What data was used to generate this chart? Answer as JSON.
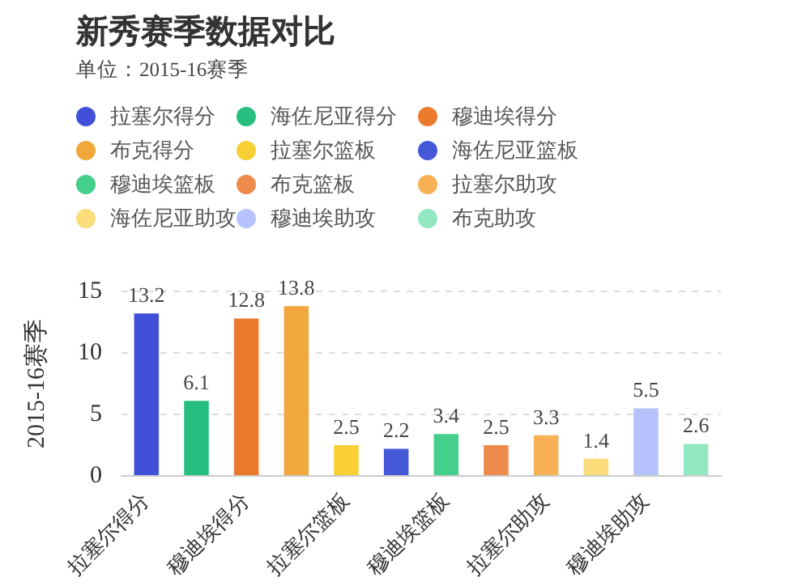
{
  "chart_data": {
    "type": "bar",
    "title": "新秀赛季数据对比",
    "subtitle": "单位：2015-16赛季",
    "ylabel": "2015-16赛季",
    "categories": [
      "拉塞尔得分",
      null,
      "穆迪埃得分",
      null,
      "拉塞尔篮板",
      null,
      "穆迪埃篮板",
      null,
      "拉塞尔助攻",
      null,
      "穆迪埃助攻",
      null
    ],
    "series": [
      {
        "name": "拉塞尔得分",
        "color": "#4150d8",
        "values": [
          13.2,
          null,
          null,
          null,
          null,
          null,
          null,
          null,
          null,
          null,
          null,
          null
        ]
      },
      {
        "name": "海佐尼亚得分",
        "color": "#26bf7f",
        "values": [
          null,
          6.1,
          null,
          null,
          null,
          null,
          null,
          null,
          null,
          null,
          null,
          null
        ]
      },
      {
        "name": "穆迪埃得分",
        "color": "#ec7a2e",
        "values": [
          null,
          null,
          12.8,
          null,
          null,
          null,
          null,
          null,
          null,
          null,
          null,
          null
        ]
      },
      {
        "name": "布克得分",
        "color": "#f0a83c",
        "values": [
          null,
          null,
          null,
          13.8,
          null,
          null,
          null,
          null,
          null,
          null,
          null,
          null
        ]
      },
      {
        "name": "拉塞尔篮板",
        "color": "#f8cf35",
        "values": [
          null,
          null,
          null,
          null,
          2.5,
          null,
          null,
          null,
          null,
          null,
          null,
          null
        ]
      },
      {
        "name": "海佐尼亚篮板",
        "color": "#4458d8",
        "values": [
          null,
          null,
          null,
          null,
          null,
          2.2,
          null,
          null,
          null,
          null,
          null,
          null
        ]
      },
      {
        "name": "穆迪埃篮板",
        "color": "#45cf8c",
        "values": [
          null,
          null,
          null,
          null,
          null,
          null,
          3.4,
          null,
          null,
          null,
          null,
          null
        ]
      },
      {
        "name": "布克篮板",
        "color": "#ee8a4c",
        "values": [
          null,
          null,
          null,
          null,
          null,
          null,
          null,
          2.5,
          null,
          null,
          null,
          null
        ]
      },
      {
        "name": "拉塞尔助攻",
        "color": "#f8b156",
        "values": [
          null,
          null,
          null,
          null,
          null,
          null,
          null,
          null,
          3.3,
          null,
          null,
          null
        ]
      },
      {
        "name": "海佐尼亚助攻",
        "color": "#fbdd7c",
        "values": [
          null,
          null,
          null,
          null,
          null,
          null,
          null,
          null,
          null,
          1.4,
          null,
          null
        ]
      },
      {
        "name": "穆迪埃助攻",
        "color": "#b6c2fb",
        "values": [
          null,
          null,
          null,
          null,
          null,
          null,
          null,
          null,
          null,
          null,
          5.5,
          null
        ]
      },
      {
        "name": "布克助攻",
        "color": "#93e8c3",
        "values": [
          null,
          null,
          null,
          null,
          null,
          null,
          null,
          null,
          null,
          null,
          null,
          2.6
        ]
      }
    ],
    "ylim": [
      0,
      15
    ],
    "yticks": [
      0,
      5,
      10,
      15
    ],
    "grid": "y",
    "legend": "top",
    "marker": "circle",
    "data_labels": true
  }
}
